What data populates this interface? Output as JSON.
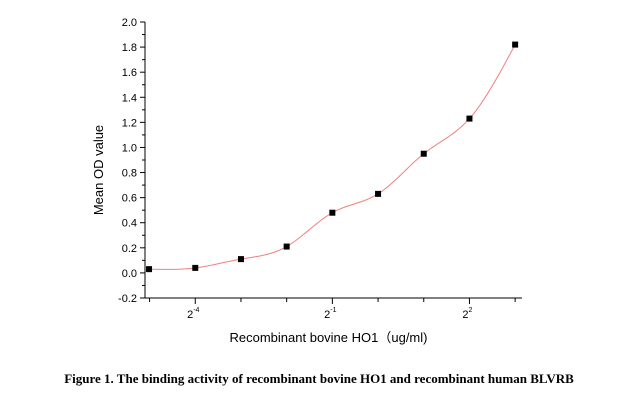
{
  "chart_data": {
    "type": "scatter",
    "x_scale": "log2",
    "xlabel": "Recombinant bovine HO1（ug/ml)",
    "ylabel": "Mean OD value",
    "ylim": [
      -0.2,
      2.0
    ],
    "yticks": [
      "-0.2",
      "0.0",
      "0.2",
      "0.4",
      "0.6",
      "0.8",
      "1.0",
      "1.2",
      "1.4",
      "1.6",
      "1.8",
      "2.0"
    ],
    "xticks": [
      {
        "value": 0.0625,
        "base": "2",
        "exponent": "-4"
      },
      {
        "value": 0.5,
        "base": "2",
        "exponent": "-1"
      },
      {
        "value": 4,
        "base": "2",
        "exponent": "2"
      }
    ],
    "x": [
      0.031,
      0.0625,
      0.125,
      0.25,
      0.5,
      1,
      2,
      4,
      8
    ],
    "y": [
      0.03,
      0.04,
      0.11,
      0.21,
      0.48,
      0.63,
      0.95,
      1.23,
      1.82
    ],
    "fit_color": "#f08080",
    "marker_color": "#000000",
    "grid": false,
    "legend": "none"
  },
  "caption": "Figure 1. The binding activity of recombinant bovine HO1 and recombinant human BLVRB"
}
